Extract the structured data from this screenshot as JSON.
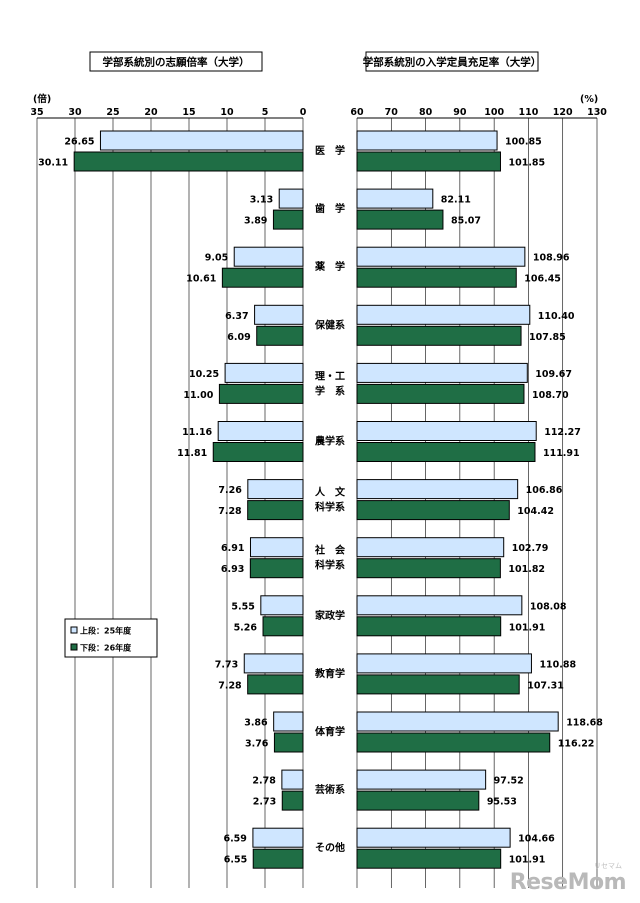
{
  "chart_data": [
    {
      "type": "bar",
      "title": "学部系統別の志願倍率（大学）",
      "unit": "(倍)",
      "orientation": "horizontal",
      "direction": "right-to-left",
      "xlim": [
        0,
        35
      ],
      "ticks": [
        "35",
        "30",
        "25",
        "20",
        "15",
        "10",
        "5",
        "0"
      ],
      "tick_values": [
        35,
        30,
        25,
        20,
        15,
        10,
        5,
        0
      ],
      "grid": true,
      "series": [
        {
          "name": "上段：25年度",
          "values": [
            26.65,
            3.13,
            9.05,
            6.37,
            10.25,
            11.16,
            7.26,
            6.91,
            5.55,
            7.73,
            3.86,
            2.78,
            6.59
          ],
          "labels": [
            "26.65",
            "3.13",
            "9.05",
            "6.37",
            "10.25",
            "11.16",
            "7.26",
            "6.91",
            "5.55",
            "7.73",
            "3.86",
            "2.78",
            "6.59"
          ]
        },
        {
          "name": "下段：26年度",
          "values": [
            30.11,
            3.89,
            10.61,
            6.09,
            11.0,
            11.81,
            7.28,
            6.93,
            5.26,
            7.28,
            3.76,
            2.73,
            6.55
          ],
          "labels": [
            "30.11",
            "3.89",
            "10.61",
            "6.09",
            "11.00",
            "11.81",
            "7.28",
            "6.93",
            "5.26",
            "7.28",
            "3.76",
            "2.73",
            "6.55"
          ]
        }
      ]
    },
    {
      "type": "bar",
      "title": "学部系統別の入学定員充足率（大学）",
      "unit": "(%)",
      "orientation": "horizontal",
      "direction": "left-to-right",
      "xlim": [
        60,
        130
      ],
      "ticks": [
        "60",
        "70",
        "80",
        "90",
        "100",
        "110",
        "120",
        "130"
      ],
      "tick_values": [
        60,
        70,
        80,
        90,
        100,
        110,
        120,
        130
      ],
      "grid": true,
      "series": [
        {
          "name": "上段：25年度",
          "values": [
            100.85,
            82.11,
            108.96,
            110.4,
            109.67,
            112.27,
            106.86,
            102.79,
            108.08,
            110.88,
            118.68,
            97.52,
            104.66
          ],
          "labels": [
            "100.85",
            "82.11",
            "108.96",
            "110.40",
            "109.67",
            "112.27",
            "106.86",
            "102.79",
            "108.08",
            "110.88",
            "118.68",
            "97.52",
            "104.66"
          ]
        },
        {
          "name": "下段：26年度",
          "values": [
            101.85,
            85.07,
            106.45,
            107.85,
            108.7,
            111.91,
            104.42,
            101.82,
            101.91,
            107.31,
            116.22,
            95.53,
            101.91
          ],
          "labels": [
            "101.85",
            "85.07",
            "106.45",
            "107.85",
            "108.70",
            "111.91",
            "104.42",
            "101.82",
            "101.91",
            "107.31",
            "116.22",
            "95.53",
            "101.91"
          ]
        }
      ]
    }
  ],
  "categories": [
    [
      "医　学"
    ],
    [
      "歯　学"
    ],
    [
      "薬　学"
    ],
    [
      "保健系"
    ],
    [
      "理・工",
      "学　系"
    ],
    [
      "農学系"
    ],
    [
      "人　文",
      "科学系"
    ],
    [
      "社　会",
      "科学系"
    ],
    [
      "家政学"
    ],
    [
      "教育学"
    ],
    [
      "体育学"
    ],
    [
      "芸術系"
    ],
    [
      "その他"
    ]
  ],
  "legend": {
    "position": "left-middle",
    "items": [
      {
        "label": "上段：25年度",
        "color": "#cfe6ff"
      },
      {
        "label": "下段：26年度",
        "color": "#1f6e45"
      }
    ]
  },
  "colors": {
    "series_2013": "#cfe6ff",
    "series_2014": "#1f6e45",
    "bar_border": "#000000",
    "grid": "#000000"
  },
  "watermark": {
    "text": "ReseMom",
    "small": "リセマム"
  }
}
